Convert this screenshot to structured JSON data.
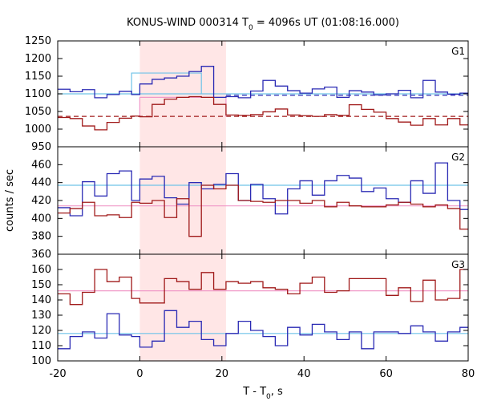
{
  "chart_data": {
    "type": "line",
    "title": {
      "prefix": "KONUS-WIND 000314 T",
      "sub": "0",
      "suffix": " = 4096s UT (01:08:16.000)"
    },
    "xlabel": {
      "prefix": "T - T",
      "sub": "0",
      "suffix": ", s"
    },
    "ylabel": "counts / sec",
    "xlim": [
      -20,
      80
    ],
    "xticks": [
      -20,
      0,
      20,
      40,
      60,
      80
    ],
    "shaded_interval": [
      0,
      21
    ],
    "colors": {
      "blue": "#2a2ab4",
      "red": "#a01a1a",
      "light_blue": "#6fc3e8",
      "pink": "#f099c8",
      "shade": "#ffe6e6"
    },
    "panels": [
      {
        "label": "G1",
        "ylim": [
          950,
          1250
        ],
        "yticks": [
          950,
          1000,
          1050,
          1100,
          1150,
          1200,
          1250
        ],
        "x_edges": [
          -20,
          -17,
          -14,
          -11,
          -8,
          -5,
          -2,
          0,
          3,
          6,
          9,
          12,
          15,
          18,
          21,
          24,
          27,
          30,
          33,
          36,
          39,
          42,
          45,
          48,
          51,
          54,
          57,
          60,
          63,
          66,
          69,
          72,
          75,
          78,
          80
        ],
        "series": [
          {
            "color": "blue",
            "values": [
              1113,
              1106,
              1112,
              1089,
              1098,
              1107,
              1098,
              1128,
              1141,
              1145,
              1150,
              1163,
              1178,
              1090,
              1092,
              1089,
              1108,
              1138,
              1122,
              1109,
              1102,
              1114,
              1119,
              1090,
              1109,
              1105,
              1097,
              1100,
              1110,
              1089,
              1138,
              1105,
              1099,
              1102
            ]
          },
          {
            "color": "red",
            "values": [
              1033,
              1030,
              1009,
              998,
              1019,
              1031,
              1037,
              1035,
              1070,
              1085,
              1090,
              1092,
              1090,
              1070,
              1040,
              1039,
              1041,
              1049,
              1057,
              1040,
              1038,
              1036,
              1041,
              1039,
              1069,
              1056,
              1048,
              1030,
              1020,
              1011,
              1030,
              1012,
              1030,
              1012
            ]
          }
        ],
        "box": {
          "color": "light_blue",
          "x": [
            -2,
            15
          ],
          "levels": [
            1100,
            1159
          ]
        },
        "box2": {
          "color": "pink",
          "x": [
            0,
            21
          ],
          "levels": [
            1035,
            1090
          ]
        },
        "ref_lines": [
          {
            "color": "blue",
            "value": 1096,
            "dashed": true,
            "x": [
              21,
              80
            ]
          },
          {
            "color": "light_blue",
            "value": 1100,
            "dashed": false,
            "x": [
              -20,
              80
            ]
          },
          {
            "color": "red",
            "value": 1036,
            "dashed": true,
            "x": [
              -20,
              80
            ]
          }
        ]
      },
      {
        "label": "G2",
        "ylim": [
          360,
          480
        ],
        "yticks": [
          360,
          380,
          400,
          420,
          440,
          460
        ],
        "x_edges": [
          -20,
          -17,
          -14,
          -11,
          -8,
          -5,
          -2,
          0,
          3,
          6,
          9,
          12,
          15,
          18,
          21,
          24,
          27,
          30,
          33,
          36,
          39,
          42,
          45,
          48,
          51,
          54,
          57,
          60,
          63,
          66,
          69,
          72,
          75,
          78,
          80
        ],
        "series": [
          {
            "color": "blue",
            "values": [
              412,
              403,
              441,
              425,
              450,
              453,
              420,
              444,
              447,
              423,
              416,
              440,
              433,
              438,
              450,
              420,
              438,
              422,
              405,
              433,
              442,
              426,
              442,
              448,
              445,
              430,
              434,
              422,
              418,
              442,
              428,
              462,
              420,
              410
            ]
          },
          {
            "color": "red",
            "values": [
              406,
              411,
              418,
              403,
              404,
              401,
              418,
              417,
              420,
              401,
              422,
              380,
              437,
              433,
              437,
              420,
              419,
              418,
              420,
              420,
              417,
              420,
              413,
              418,
              414,
              413,
              413,
              415,
              418,
              416,
              413,
              415,
              411,
              388
            ]
          }
        ],
        "ref_lines": [
          {
            "color": "light_blue",
            "value": 437,
            "dashed": false,
            "x": [
              -20,
              80
            ]
          },
          {
            "color": "pink",
            "value": 414,
            "dashed": false,
            "x": [
              -20,
              80
            ]
          }
        ]
      },
      {
        "label": "G3",
        "ylim": [
          100,
          170
        ],
        "yticks": [
          100,
          110,
          120,
          130,
          140,
          150,
          160
        ],
        "x_edges": [
          -20,
          -17,
          -14,
          -11,
          -8,
          -5,
          -2,
          0,
          3,
          6,
          9,
          12,
          15,
          18,
          21,
          24,
          27,
          30,
          33,
          36,
          39,
          42,
          45,
          48,
          51,
          54,
          57,
          60,
          63,
          66,
          69,
          72,
          75,
          78,
          80
        ],
        "series": [
          {
            "color": "blue",
            "values": [
              108,
              116,
              119,
              115,
              131,
              117,
              116,
              109,
              113,
              133,
              122,
              126,
              114,
              110,
              118,
              126,
              120,
              116,
              110,
              122,
              117,
              124,
              119,
              114,
              119,
              108,
              119,
              119,
              118,
              123,
              119,
              113,
              119,
              122
            ]
          },
          {
            "color": "red",
            "values": [
              144,
              137,
              145,
              160,
              152,
              155,
              141,
              138,
              138,
              154,
              152,
              147,
              158,
              147,
              152,
              151,
              152,
              148,
              147,
              144,
              151,
              155,
              145,
              146,
              154,
              154,
              154,
              143,
              148,
              139,
              153,
              140,
              141,
              160
            ]
          }
        ],
        "ref_lines": [
          {
            "color": "light_blue",
            "value": 118,
            "dashed": false,
            "x": [
              -20,
              80
            ]
          },
          {
            "color": "pink",
            "value": 146,
            "dashed": false,
            "x": [
              -20,
              80
            ]
          }
        ]
      }
    ]
  }
}
